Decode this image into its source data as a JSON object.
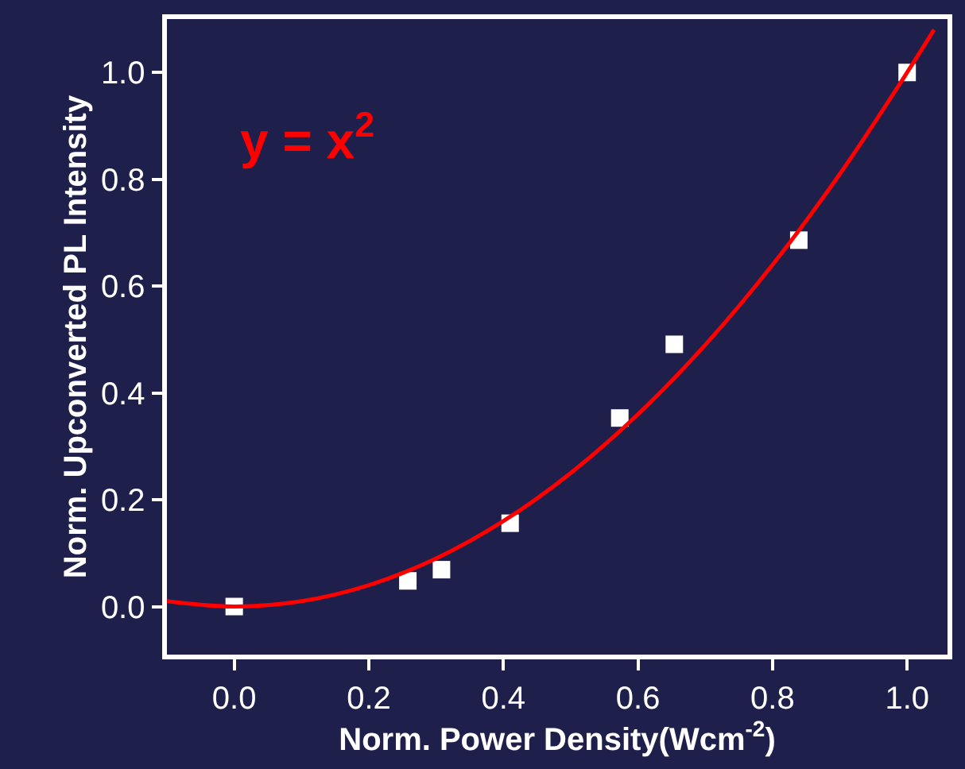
{
  "chart_data": {
    "type": "scatter",
    "xlabel": "Norm. Power Density(Wcm$^{-2}$)",
    "ylabel": "Norm. Upconverted PL Intensity",
    "annotations": [
      "y = x$^{2}$"
    ],
    "series": [
      {
        "color": "#ffffff",
        "marker": "square",
        "x": [
          0.0,
          0.258,
          0.308,
          0.41,
          0.573,
          0.654,
          0.839,
          1.0
        ],
        "values": [
          0.0,
          0.048,
          0.069,
          0.156,
          0.353,
          0.491,
          0.686,
          1.0
        ]
      },
      {
        "type": "line",
        "color": "#ff0000",
        "line_style": "solid",
        "x": [
          -0.1,
          0.0,
          0.1,
          0.2,
          0.3,
          0.4,
          0.5,
          0.6,
          0.7,
          0.8,
          0.9,
          1.0,
          1.04
        ],
        "values": [
          0.01,
          0.0,
          0.01,
          0.04,
          0.09,
          0.16,
          0.25,
          0.36,
          0.49,
          0.64,
          0.81,
          1.0,
          1.08
        ]
      }
    ],
    "xlim": [
      -0.1,
      1.06
    ],
    "ylim": [
      -0.09,
      1.1
    ],
    "xticks": [
      {
        "value": 0.0,
        "label": "0.0"
      },
      0.2,
      0.4,
      0.6,
      0.8,
      {
        "value": 1.0,
        "label": "1.0"
      }
    ],
    "yticks": [
      {
        "value": 0.0,
        "label": "0.0"
      },
      0.2,
      0.4,
      0.6,
      0.8,
      {
        "value": 1.0,
        "label": "1.0"
      }
    ],
    "grid": false,
    "legend": false
  }
}
